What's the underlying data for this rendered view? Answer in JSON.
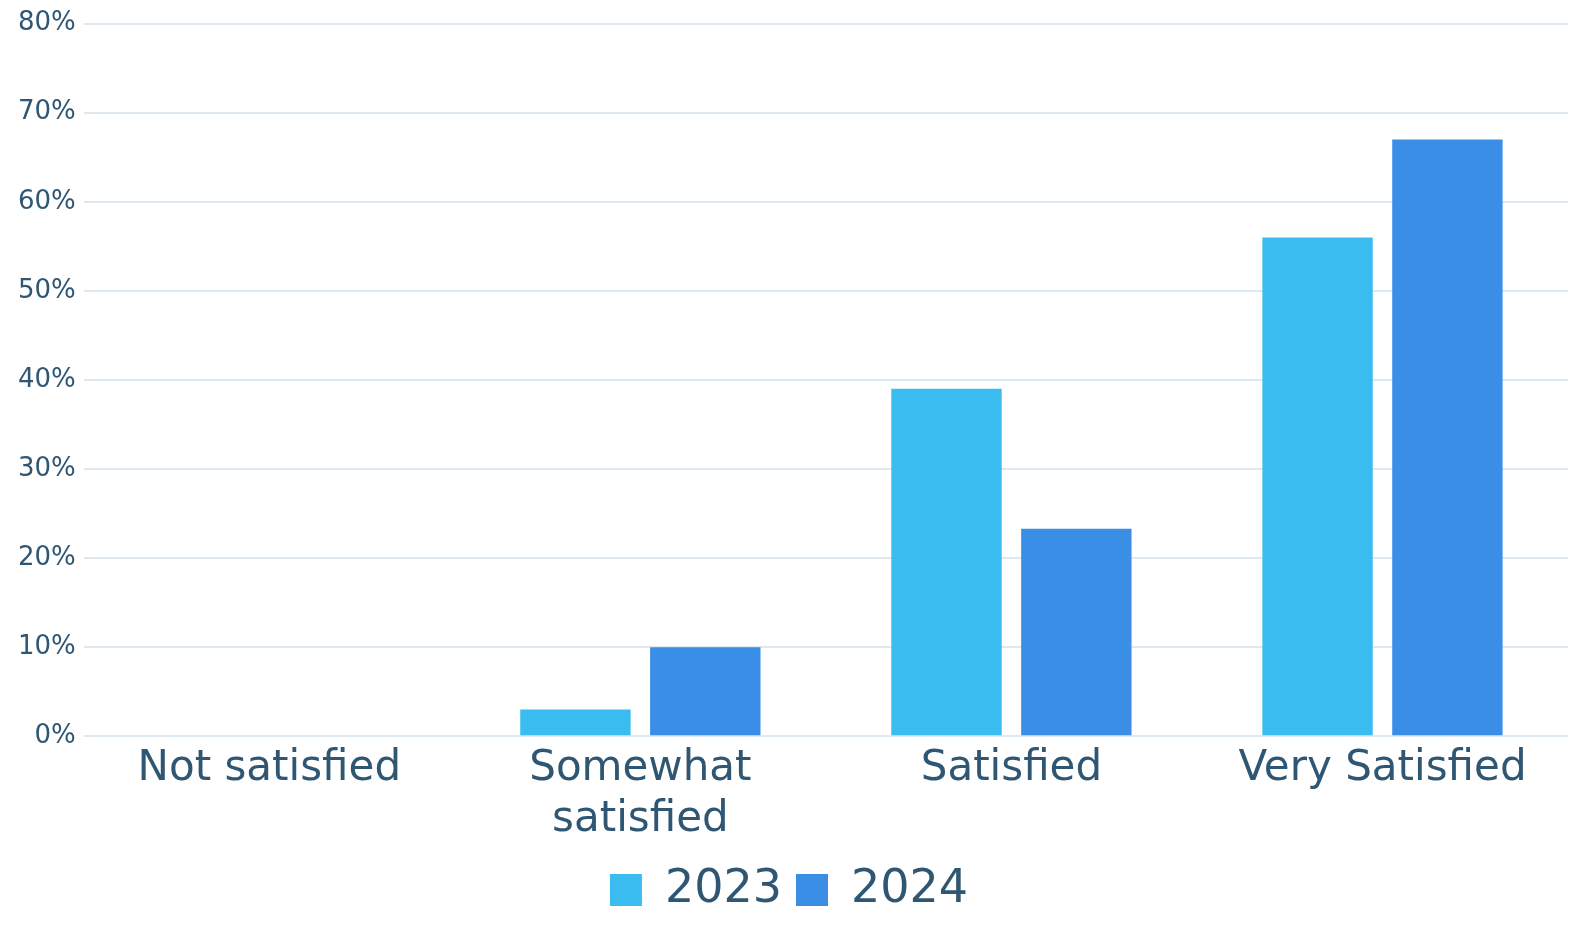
{
  "chart_data": {
    "type": "bar",
    "categories": [
      "Not satisfied",
      "Somewhat satisfied",
      "Satisfied",
      "Very Satisfied"
    ],
    "series": [
      {
        "name": "2023",
        "color": "#3bbcf0",
        "values": [
          0,
          3,
          39,
          56
        ]
      },
      {
        "name": "2024",
        "color": "#3a8ee6",
        "values": [
          0,
          10,
          23.3,
          67
        ]
      }
    ],
    "ylim": [
      0,
      80
    ],
    "yticks": [
      {
        "value": 0,
        "label": "0%"
      },
      {
        "value": 10,
        "label": "10%"
      },
      {
        "value": 20,
        "label": "20%"
      },
      {
        "value": 30,
        "label": "30%"
      },
      {
        "value": 40,
        "label": "40%"
      },
      {
        "value": 50,
        "label": "50%"
      },
      {
        "value": 60,
        "label": "60%"
      },
      {
        "value": 70,
        "label": "70%"
      },
      {
        "value": 80,
        "label": "80%"
      }
    ],
    "grid": "y",
    "legend": "bottom"
  }
}
